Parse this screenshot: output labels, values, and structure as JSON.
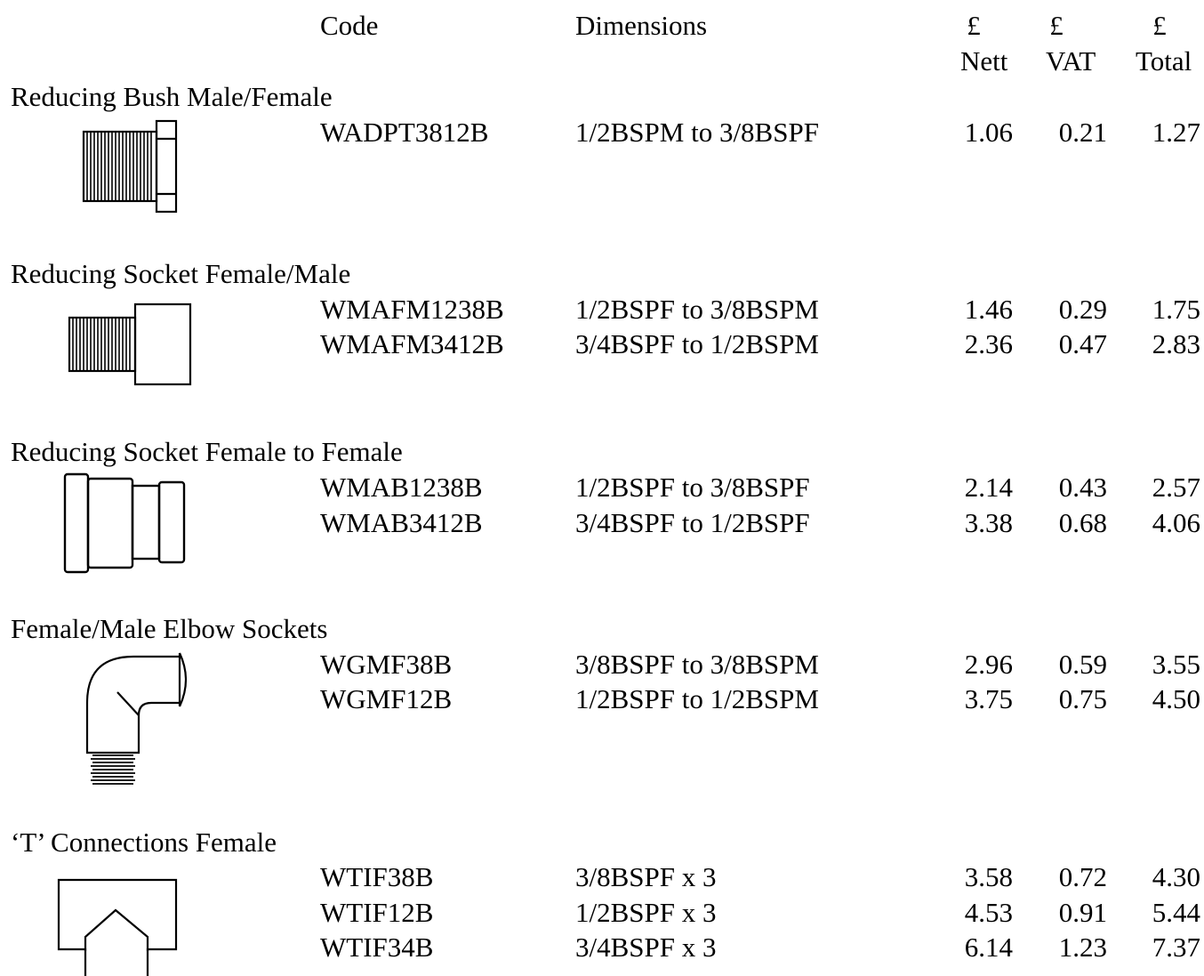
{
  "header": {
    "code": "Code",
    "dimensions": "Dimensions",
    "currency_nett": "£",
    "currency_vat": "£",
    "currency_total": "£",
    "nett": "Nett",
    "vat": "VAT",
    "total": "Total"
  },
  "sections": [
    {
      "title": "Reducing Bush Male/Female",
      "icon": "reducing-bush-male-female",
      "rows": [
        {
          "code": "WADPT3812B",
          "dims": "1/2BSPM to 3/8BSPF",
          "nett": "1.06",
          "vat": "0.21",
          "total": "1.27"
        }
      ]
    },
    {
      "title": "Reducing Socket Female/Male",
      "icon": "reducing-socket-female-male",
      "rows": [
        {
          "code": "WMAFM1238B",
          "dims": "1/2BSPF to 3/8BSPM",
          "nett": "1.46",
          "vat": "0.29",
          "total": "1.75"
        },
        {
          "code": "WMAFM3412B",
          "dims": "3/4BSPF to 1/2BSPM",
          "nett": "2.36",
          "vat": "0.47",
          "total": "2.83"
        }
      ]
    },
    {
      "title": "Reducing Socket Female to Female",
      "icon": "reducing-socket-female-female",
      "rows": [
        {
          "code": "WMAB1238B",
          "dims": "1/2BSPF to 3/8BSPF",
          "nett": "2.14",
          "vat": "0.43",
          "total": "2.57"
        },
        {
          "code": "WMAB3412B",
          "dims": "3/4BSPF to 1/2BSPF",
          "nett": "3.38",
          "vat": "0.68",
          "total": "4.06"
        }
      ]
    },
    {
      "title": "Female/Male Elbow Sockets",
      "icon": "elbow-socket",
      "rows": [
        {
          "code": "WGMF38B",
          "dims": "3/8BSPF to 3/8BSPM",
          "nett": "2.96",
          "vat": "0.59",
          "total": "3.55"
        },
        {
          "code": "WGMF12B",
          "dims": "1/2BSPF to 1/2BSPM",
          "nett": "3.75",
          "vat": "0.75",
          "total": "4.50"
        }
      ]
    },
    {
      "title": "‘T’ Connections Female",
      "icon": "t-connection",
      "rows": [
        {
          "code": "WTIF38B",
          "dims": "3/8BSPF x 3",
          "nett": "3.58",
          "vat": "0.72",
          "total": "4.30"
        },
        {
          "code": "WTIF12B",
          "dims": "1/2BSPF x 3",
          "nett": "4.53",
          "vat": "0.91",
          "total": "5.44"
        },
        {
          "code": "WTIF34B",
          "dims": "3/4BSPF x 3",
          "nett": "6.14",
          "vat": "1.23",
          "total": "7.37"
        }
      ]
    }
  ]
}
